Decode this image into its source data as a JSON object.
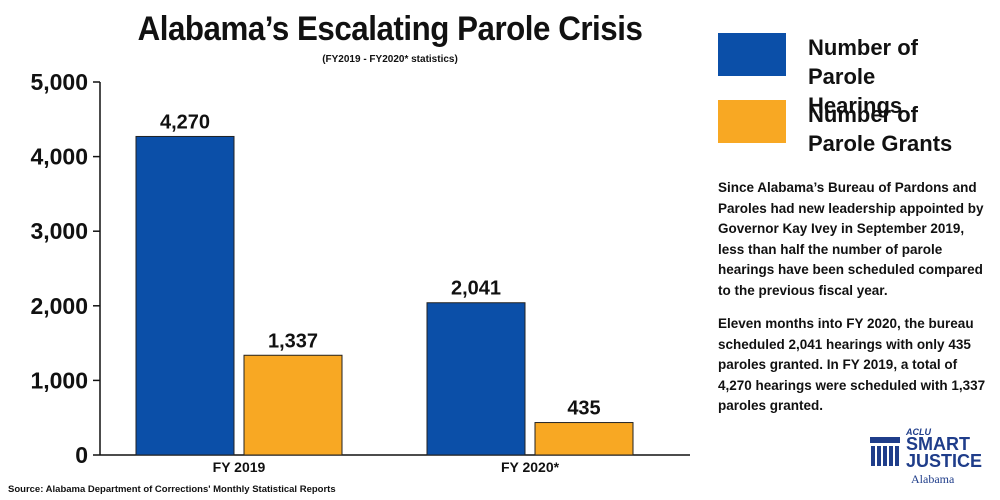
{
  "chart_data": {
    "type": "bar",
    "title": "Alabama’s Escalating Parole Crisis",
    "subtitle": "(FY2019 - FY2020* statistics)",
    "categories": [
      "FY 2019",
      "FY 2020*"
    ],
    "series": [
      {
        "name": "Number of Parole Hearings",
        "values": [
          4270,
          2041
        ],
        "labels": [
          "4,270",
          "2,041"
        ],
        "color": "#0b4fa8"
      },
      {
        "name": "Number of Parole Grants",
        "values": [
          1337,
          435
        ],
        "labels": [
          "1,337",
          "435"
        ],
        "color": "#f8a823"
      }
    ],
    "ylim": [
      0,
      5000
    ],
    "yticks": [
      0,
      1000,
      2000,
      3000,
      4000,
      5000
    ],
    "ytick_labels": [
      "0",
      "1,000",
      "2,000",
      "3,000",
      "4,000",
      "5,000"
    ],
    "grid": false,
    "legend_position": "right"
  },
  "legend": [
    {
      "line1": "Number of",
      "line2": "Parole Hearings",
      "color": "#0b4fa8"
    },
    {
      "line1": "Number of",
      "line2": "Parole Grants",
      "color": "#f8a823"
    }
  ],
  "description": {
    "paragraph1": "Since Alabama’s Bureau of Pardons and Paroles had new leadership appointed by Governor Kay Ivey in September 2019, less than half the number of parole hearings have been scheduled compared to the previous fiscal year.",
    "paragraph2": "Eleven months into FY 2020, the bureau scheduled 2,041 hearings with only 435 paroles granted. In FY 2019, a total of 4,270 hearings were scheduled with 1,337 paroles granted."
  },
  "source": "Source: Alabama Department of Corrections' Monthly Statistical Reports",
  "logo": {
    "aclu": "ACLU",
    "smart": "SMART",
    "justice": "JUSTICE",
    "state": "Alabama",
    "brand_color": "#1f3d8a"
  }
}
